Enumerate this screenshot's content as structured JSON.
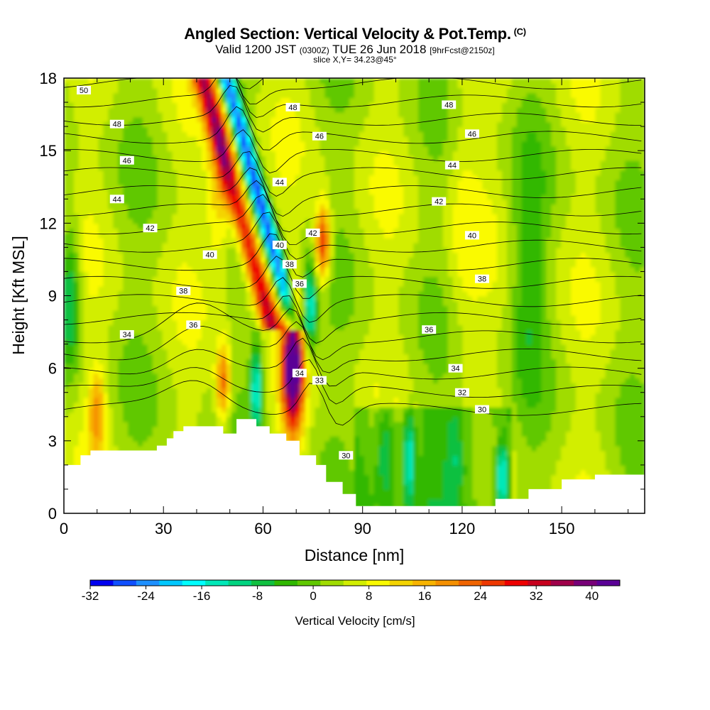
{
  "header": {
    "title": "Angled Section: Vertical Velocity & Pot.Temp.",
    "copyright": "(C)",
    "valid_prefix": "Valid 1200 JST",
    "valid_utc": "(0300Z)",
    "valid_date": "TUE 26 Jun 2018",
    "forecast": "[9hrFcst@2150z]",
    "slice": "slice X,Y= 34.23@45°"
  },
  "chart_data": {
    "type": "heatmap",
    "xlabel": "Distance [nm]",
    "ylabel": "Height [Kft MSL]",
    "xlim": [
      0,
      175
    ],
    "ylim": [
      0,
      18
    ],
    "x_ticks": [
      0,
      30,
      60,
      90,
      120,
      150
    ],
    "y_ticks": [
      0,
      3,
      6,
      9,
      12,
      15,
      18
    ],
    "colorbar": {
      "label": "Vertical Velocity [cm/s]",
      "ticks": [
        -32,
        -24,
        -16,
        -8,
        0,
        8,
        16,
        24,
        32,
        40
      ],
      "range": [
        -32,
        44
      ],
      "colors": [
        "#0000f0",
        "#1050ff",
        "#1e90ff",
        "#00c8ff",
        "#00ffff",
        "#00e8b8",
        "#00d480",
        "#10c040",
        "#30b800",
        "#60c800",
        "#a0dc00",
        "#d2ee00",
        "#fafa00",
        "#f4d400",
        "#f8b400",
        "#f59000",
        "#f06400",
        "#ee3800",
        "#ee0000",
        "#c8001e",
        "#a0004a",
        "#780078",
        "#5a0096"
      ]
    },
    "terrain_profile": [
      [
        0,
        2
      ],
      [
        5,
        2
      ],
      [
        5,
        2.4
      ],
      [
        8,
        2.4
      ],
      [
        8,
        2.6
      ],
      [
        28,
        2.6
      ],
      [
        28,
        2.8
      ],
      [
        31,
        2.8
      ],
      [
        31,
        3.1
      ],
      [
        33,
        3.1
      ],
      [
        33,
        3.4
      ],
      [
        36,
        3.4
      ],
      [
        36,
        3.6
      ],
      [
        48,
        3.6
      ],
      [
        48,
        3.3
      ],
      [
        52,
        3.3
      ],
      [
        52,
        3.9
      ],
      [
        58,
        3.9
      ],
      [
        58,
        3.6
      ],
      [
        62,
        3.6
      ],
      [
        62,
        3.3
      ],
      [
        67,
        3.3
      ],
      [
        67,
        3.0
      ],
      [
        71,
        3.0
      ],
      [
        71,
        2.4
      ],
      [
        76,
        2.4
      ],
      [
        76,
        2.0
      ],
      [
        79,
        2.0
      ],
      [
        79,
        1.3
      ],
      [
        84,
        1.3
      ],
      [
        84,
        0.8
      ],
      [
        88,
        0.8
      ],
      [
        88,
        0.3
      ],
      [
        130,
        0.3
      ],
      [
        130,
        0.6
      ],
      [
        140,
        0.6
      ],
      [
        140,
        1.0
      ],
      [
        150,
        1.0
      ],
      [
        150,
        1.4
      ],
      [
        160,
        1.4
      ],
      [
        160,
        1.6
      ],
      [
        175,
        1.6
      ]
    ],
    "isotherms": [
      {
        "label": "50",
        "label_at": [
          6,
          17.5
        ]
      },
      {
        "label": "48",
        "label_at": [
          16,
          16.1
        ]
      },
      {
        "label": "46",
        "label_at": [
          19,
          14.6
        ]
      },
      {
        "label": "44",
        "label_at": [
          16,
          13.0
        ]
      },
      {
        "label": "42",
        "label_at": [
          26,
          11.8
        ]
      },
      {
        "label": "40",
        "label_at": [
          44,
          10.7
        ]
      },
      {
        "label": "38",
        "label_at": [
          36,
          9.2
        ]
      },
      {
        "label": "36",
        "label_at": [
          39,
          7.8
        ]
      },
      {
        "label": "34",
        "label_at": [
          19,
          7.4
        ]
      },
      {
        "label": "48",
        "label_at": [
          69,
          16.8
        ]
      },
      {
        "label": "46",
        "label_at": [
          77,
          15.6
        ]
      },
      {
        "label": "44",
        "label_at": [
          65,
          13.7
        ]
      },
      {
        "label": "42",
        "label_at": [
          75,
          11.6
        ]
      },
      {
        "label": "40",
        "label_at": [
          65,
          11.1
        ]
      },
      {
        "label": "38",
        "label_at": [
          68,
          10.3
        ]
      },
      {
        "label": "36",
        "label_at": [
          71,
          9.5
        ]
      },
      {
        "label": "34",
        "label_at": [
          71,
          5.8
        ]
      },
      {
        "label": "33",
        "label_at": [
          77,
          5.5
        ]
      },
      {
        "label": "30",
        "label_at": [
          85,
          2.4
        ]
      },
      {
        "label": "48",
        "label_at": [
          116,
          16.9
        ]
      },
      {
        "label": "46",
        "label_at": [
          123,
          15.7
        ]
      },
      {
        "label": "44",
        "label_at": [
          117,
          14.4
        ]
      },
      {
        "label": "42",
        "label_at": [
          113,
          12.9
        ]
      },
      {
        "label": "40",
        "label_at": [
          123,
          11.5
        ]
      },
      {
        "label": "38",
        "label_at": [
          126,
          9.7
        ]
      },
      {
        "label": "36",
        "label_at": [
          110,
          7.6
        ]
      },
      {
        "label": "34",
        "label_at": [
          118,
          6.0
        ]
      },
      {
        "label": "32",
        "label_at": [
          120,
          5.0
        ]
      },
      {
        "label": "30",
        "label_at": [
          126,
          4.3
        ]
      }
    ]
  }
}
